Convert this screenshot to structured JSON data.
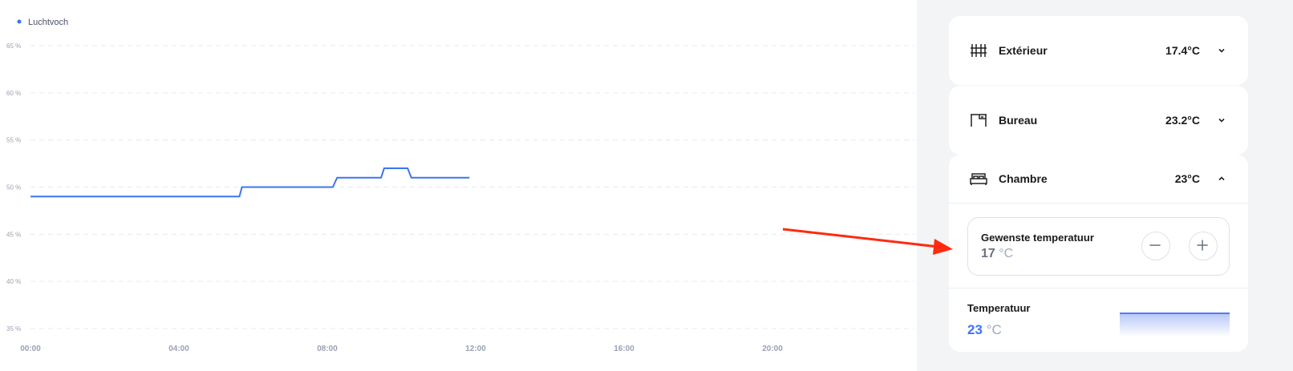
{
  "chart_data": {
    "type": "line",
    "legend": [
      "Luchtvoch"
    ],
    "legend_placement": "top-left",
    "color": "#3b74f5",
    "grid": true,
    "ylim": [
      35,
      65
    ],
    "yticks": [
      "65 %",
      "60 %",
      "55 %",
      "50 %",
      "45 %",
      "40 %",
      "35 %"
    ],
    "ytick_values": [
      65,
      60,
      55,
      50,
      45,
      40,
      35
    ],
    "xlim": [
      "00:00",
      "24:00"
    ],
    "xticks": [
      "00:00",
      "04:00",
      "08:00",
      "12:00",
      "16:00",
      "20:00"
    ],
    "series": [
      {
        "name": "Luchtvoch",
        "x": [
          "00:00",
          "05:38",
          "05:42",
          "08:09",
          "08:16",
          "09:27",
          "09:32",
          "10:10",
          "10:16",
          "11:50"
        ],
        "y": [
          49,
          49,
          50,
          50,
          51,
          51,
          52,
          52,
          51,
          51
        ]
      }
    ]
  },
  "rooms": [
    {
      "name": "Extérieur",
      "temp": "17.4°C",
      "icon": "fence-icon",
      "expanded": false
    },
    {
      "name": "Bureau",
      "temp": "23.2°C",
      "icon": "desk-icon",
      "expanded": false
    },
    {
      "name": "Chambre",
      "temp": "23°C",
      "icon": "bed-icon",
      "expanded": true
    }
  ],
  "setpoint": {
    "label": "Gewenste temperatuur",
    "value": "17",
    "unit": "°C"
  },
  "current": {
    "label": "Temperatuur",
    "value": "23",
    "unit": "°C"
  },
  "colors": {
    "accent": "#3b74f5",
    "arrow": "#ff2a10"
  }
}
